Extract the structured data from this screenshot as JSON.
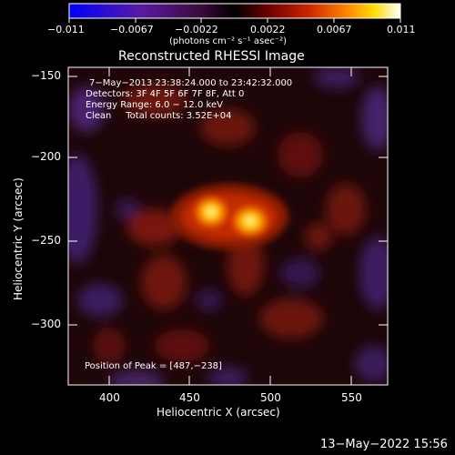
{
  "colorbar": {
    "tick_labels": [
      "−0.011",
      "−0.0067",
      "−0.0022",
      "0.0022",
      "0.0067",
      "0.011"
    ],
    "unit_label": "(photons cm⁻² s⁻¹ asec⁻²)",
    "range": [
      -0.011,
      0.011
    ],
    "colors": [
      "#0000ff",
      "#5a1a9a",
      "#3a0a3a",
      "#000000",
      "#6a0000",
      "#cc2200",
      "#ff8800",
      "#ffdd00",
      "#ffffff"
    ]
  },
  "plot": {
    "title": "Reconstructed RHESSI Image",
    "info_lines": [
      "7−May−2013 23:38:24.000 to 23:42:32.000",
      "Detectors: 3F 4F 5F 6F 7F 8F, Att 0",
      "Energy Range: 6.0 − 12.0 keV",
      "Clean     Total counts: 3.52E+04"
    ],
    "peak_label": "Position of Peak = [487,−238]",
    "xlabel": "Heliocentric X (arcsec)",
    "ylabel": "Heliocentric Y (arcsec)",
    "x_ticks": [
      "400",
      "450",
      "500",
      "550"
    ],
    "y_ticks": [
      "−150",
      "−200",
      "−250",
      "−300"
    ],
    "peak_position": [
      487,
      -238
    ]
  },
  "footer": {
    "timestamp": "13−May−2022 15:56"
  }
}
